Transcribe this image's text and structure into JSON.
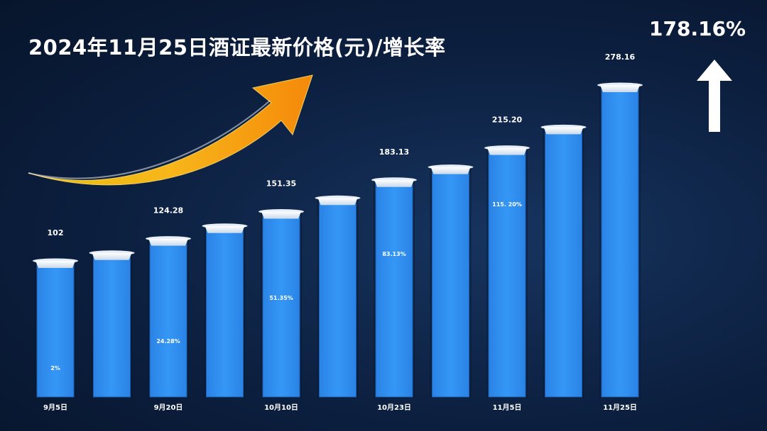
{
  "title": "2024年11月25日酒证最新价格(元)/增长率",
  "headline_growth": "178.16%",
  "colors": {
    "bar": "#2f8ff0",
    "bar_edge": "#1a5fb0",
    "cap": "#ffffff",
    "arrow": "#f59b0b"
  },
  "icons": {
    "trend": "orange-curved-up-arrow",
    "growth": "white-up-arrow"
  },
  "chart_data": {
    "type": "bar",
    "title": "2024年11月25日酒证最新价格(元)/增长率",
    "xlabel": "",
    "ylabel": "",
    "ylim": [
      0,
      300
    ],
    "grid": false,
    "bars": [
      {
        "category": "9月5日",
        "value": 102,
        "value_label": "102",
        "pct_label": "2%"
      },
      {
        "category": "",
        "value": 110,
        "value_label": "",
        "pct_label": ""
      },
      {
        "category": "9月20日",
        "value": 124.28,
        "value_label": "124.28",
        "pct_label": "24.28%"
      },
      {
        "category": "",
        "value": 137,
        "value_label": "",
        "pct_label": ""
      },
      {
        "category": "10月10日",
        "value": 151.35,
        "value_label": "151.35",
        "pct_label": "51.35%"
      },
      {
        "category": "",
        "value": 165,
        "value_label": "",
        "pct_label": ""
      },
      {
        "category": "10月23日",
        "value": 183.13,
        "value_label": "183.13",
        "pct_label": "83.13%"
      },
      {
        "category": "",
        "value": 196,
        "value_label": "",
        "pct_label": ""
      },
      {
        "category": "11月5日",
        "value": 215.2,
        "value_label": "215.20",
        "pct_label": "115. 20%"
      },
      {
        "category": "",
        "value": 236,
        "value_label": "",
        "pct_label": ""
      },
      {
        "category": "11月25日",
        "value": 278.16,
        "value_label": "278.16",
        "pct_label": ""
      }
    ]
  }
}
